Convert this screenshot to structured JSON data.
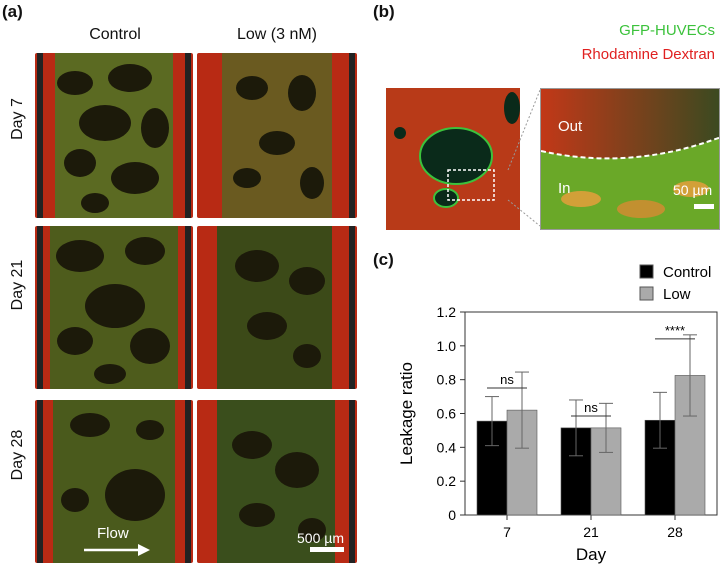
{
  "panels": {
    "a_label": "(a)",
    "b_label": "(b)",
    "c_label": "(c)"
  },
  "panel_a": {
    "columns": [
      "Control",
      "Low (3 nM)"
    ],
    "rows": [
      "Day 7",
      "Day 21",
      "Day 28"
    ],
    "flow_label": "Flow",
    "scale_bar": "500 µm"
  },
  "panel_b": {
    "legend": [
      "GFP-HUVECs",
      "Rhodamine Dextran"
    ],
    "legend_colors": [
      "#3cc23c",
      "#e02020"
    ],
    "out_label": "Out",
    "in_label": "In",
    "scale_bar": "50 µm"
  },
  "chart_data": {
    "type": "bar",
    "categories": [
      "7",
      "21",
      "28"
    ],
    "series": [
      {
        "name": "Control",
        "color": "#000000",
        "values": [
          0.555,
          0.515,
          0.56
        ],
        "errors": [
          0.145,
          0.165,
          0.165
        ]
      },
      {
        "name": "Low",
        "color": "#aaaaaa",
        "values": [
          0.62,
          0.515,
          0.825
        ],
        "errors": [
          0.225,
          0.145,
          0.24
        ]
      }
    ],
    "significance": [
      "ns",
      "ns",
      "****"
    ],
    "xlabel": "Day",
    "ylabel": "Leakage ratio",
    "ylim": [
      0,
      1.2
    ],
    "yticks": [
      "0",
      "0.2",
      "0.4",
      "0.6",
      "0.8",
      "1.0",
      "1.2"
    ],
    "legend_position": "top-right"
  }
}
